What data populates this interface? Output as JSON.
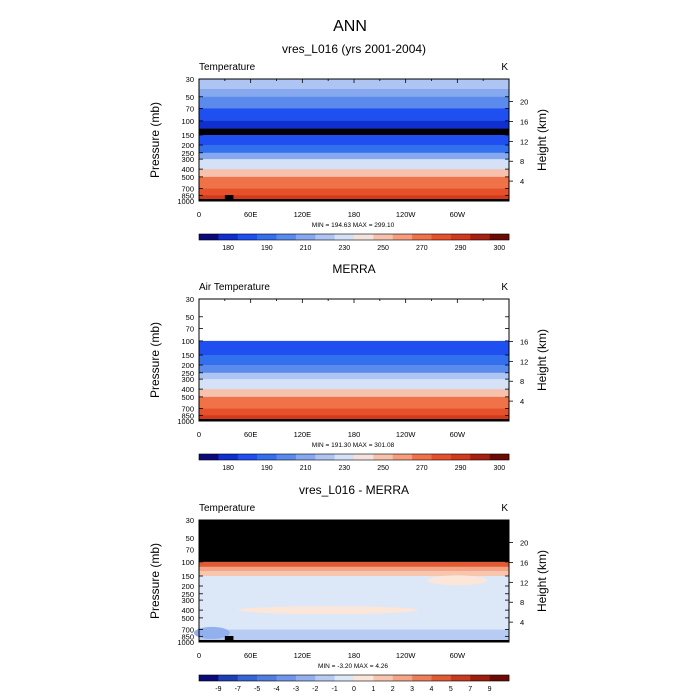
{
  "figure": {
    "title": "ANN"
  },
  "colors": {
    "abs_scale": [
      "#0a0a7a",
      "#0f2fcf",
      "#1f4ff0",
      "#3370ee",
      "#5a8bec",
      "#86a8ef",
      "#aec4f2",
      "#d4e1f6",
      "#f3e3dc",
      "#f7c2ad",
      "#f59d7d",
      "#ef7249",
      "#e7512a",
      "#d2391d",
      "#a8200f",
      "#6e0a05"
    ],
    "diff_scale": [
      "#0a0a7a",
      "#1c3fb5",
      "#3565d4",
      "#4f7de0",
      "#6f96ea",
      "#93b0ee",
      "#b8cbf2",
      "#dce7f8",
      "#fbe6d9",
      "#f8c6ae",
      "#f4a585",
      "#ee7e58",
      "#e25a33",
      "#c83b20",
      "#9e1e0e",
      "#6e0a05"
    ],
    "nodata": "#000000",
    "missing": "#ffffff"
  },
  "chart_data": [
    {
      "id": "panel-model",
      "type": "heatmap",
      "title": "vres_L016 (yrs 2001-2004)",
      "left_label": "Temperature",
      "units": "K",
      "ylabel": "Pressure (mb)",
      "ylabel_right": "Height (km)",
      "pressure_ticks": [
        30,
        50,
        70,
        100,
        150,
        200,
        250,
        300,
        400,
        500,
        700,
        850,
        1000
      ],
      "height_ticks": [
        20,
        16,
        12,
        8,
        4
      ],
      "x_ticks": [
        "0",
        "60E",
        "120E",
        "180",
        "120W",
        "60W"
      ],
      "xlim": [
        0,
        360
      ],
      "ylim": [
        1000,
        30
      ],
      "stats": "MIN = 194.63  MAX = 299.10",
      "colorbar_labels": [
        "180",
        "190",
        "210",
        "230",
        "250",
        "270",
        "290",
        "300"
      ],
      "scale": "abs",
      "profile": [
        [
          30,
          6
        ],
        [
          40,
          5
        ],
        [
          50,
          4
        ],
        [
          70,
          2
        ],
        [
          100,
          1
        ],
        [
          125,
          1.2
        ],
        [
          150,
          2
        ],
        [
          200,
          3
        ],
        [
          250,
          5
        ],
        [
          300,
          7
        ],
        [
          400,
          9
        ],
        [
          500,
          11
        ],
        [
          700,
          12
        ],
        [
          850,
          13
        ],
        [
          1000,
          14
        ]
      ],
      "topography_block": [
        30,
        40
      ]
    },
    {
      "id": "panel-obs",
      "type": "heatmap",
      "title": "MERRA",
      "left_label": "Air Temperature",
      "units": "K",
      "ylabel": "Pressure (mb)",
      "ylabel_right": "Height (km)",
      "pressure_ticks": [
        30,
        50,
        70,
        100,
        150,
        200,
        250,
        300,
        400,
        500,
        700,
        850,
        1000
      ],
      "height_ticks": [
        16,
        12,
        8,
        4
      ],
      "x_ticks": [
        "0",
        "60E",
        "120E",
        "180",
        "120W",
        "60W"
      ],
      "xlim": [
        0,
        360
      ],
      "ylim": [
        1000,
        30
      ],
      "stats": "MIN = 191.30  MAX = 301.08",
      "colorbar_labels": [
        "180",
        "190",
        "210",
        "230",
        "250",
        "270",
        "290",
        "300"
      ],
      "scale": "abs",
      "missing_above": 100,
      "profile": [
        [
          100,
          2
        ],
        [
          130,
          2
        ],
        [
          150,
          3
        ],
        [
          200,
          4
        ],
        [
          250,
          6
        ],
        [
          300,
          7
        ],
        [
          400,
          9
        ],
        [
          500,
          11
        ],
        [
          700,
          12
        ],
        [
          850,
          13
        ],
        [
          1000,
          14
        ]
      ],
      "topography_block": null
    },
    {
      "id": "panel-diff",
      "type": "heatmap",
      "title": "vres_L016 - MERRA",
      "left_label": "Temperature",
      "units": "K",
      "ylabel": "Pressure (mb)",
      "ylabel_right": "Height (km)",
      "pressure_ticks": [
        30,
        50,
        70,
        100,
        150,
        200,
        250,
        300,
        400,
        500,
        700,
        850,
        1000
      ],
      "height_ticks": [
        20,
        16,
        12,
        8,
        4
      ],
      "x_ticks": [
        "0",
        "60E",
        "120E",
        "180",
        "120W",
        "60W"
      ],
      "xlim": [
        0,
        360
      ],
      "ylim": [
        1000,
        30
      ],
      "stats": "MIN = -3.20  MAX =  4.26",
      "colorbar_labels": [
        "-9",
        "-7",
        "-5",
        "-4",
        "-3",
        "-2",
        "-1",
        "0",
        "1",
        "2",
        "3",
        "4",
        "5",
        "7",
        "9"
      ],
      "scale": "diff",
      "nodata_above": 100,
      "profile": [
        [
          100,
          12
        ],
        [
          115,
          10
        ],
        [
          130,
          9
        ],
        [
          150,
          7
        ],
        [
          200,
          7
        ],
        [
          300,
          7
        ],
        [
          400,
          7
        ],
        [
          500,
          7
        ],
        [
          700,
          6
        ],
        [
          850,
          6
        ],
        [
          1000,
          6
        ]
      ],
      "topography_block": [
        30,
        40
      ]
    }
  ]
}
